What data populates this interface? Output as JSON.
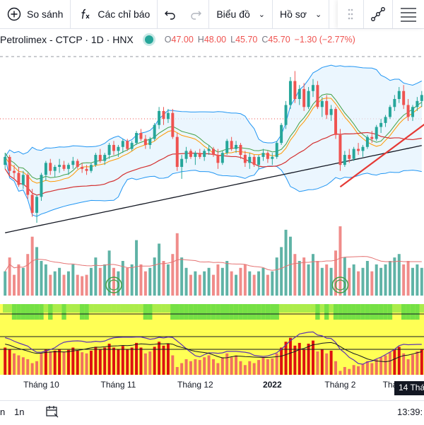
{
  "toolbar": {
    "compare_label": "So sánh",
    "indicators_label": "Các chỉ báo",
    "chart_label": "Biểu đồ",
    "profile_label": "Hồ sơ"
  },
  "legend": {
    "symbol": "Petrolimex - CTCP · 1D · HNX",
    "open_label": "O",
    "open": "47.00",
    "high_label": "H",
    "high": "48.00",
    "low_label": "L",
    "low": "45.70",
    "close_label": "C",
    "close": "45.70",
    "change": "−1.30 (−2.77%)"
  },
  "bottom_bar": {
    "range_left": "n",
    "range_1n": "1n",
    "time": "13:39:"
  },
  "crosshair_date": "14 Thá",
  "colors": {
    "up": "#26a69a",
    "down": "#ef5350",
    "bb": "#2196f3",
    "bb_fill": "#e3f2fd",
    "ma_long": "#131722",
    "trend": "#e53935",
    "vol_up": "#5fb3a6",
    "vol_down": "#f08c8a",
    "ind_yellow": "#ffff55",
    "ind_green": "#66dd44",
    "ind_red": "#dd1111",
    "ind_line": "#5e35b1"
  },
  "chart_data": {
    "type": "candlestick",
    "x_tick_labels": [
      "Tháng 10",
      "Tháng 11",
      "Tháng 12",
      "2022",
      "Tháng 2",
      "Thá"
    ],
    "candles": [
      [
        47.0,
        48.2,
        46.6,
        47.8
      ],
      [
        47.8,
        48.0,
        46.0,
        46.4
      ],
      [
        46.4,
        47.0,
        45.6,
        46.2
      ],
      [
        46.2,
        46.8,
        44.8,
        45.0
      ],
      [
        45.0,
        46.4,
        44.6,
        46.0
      ],
      [
        46.0,
        46.2,
        43.6,
        44.0
      ],
      [
        44.0,
        44.6,
        41.8,
        42.2
      ],
      [
        42.2,
        44.0,
        41.2,
        43.8
      ],
      [
        43.8,
        46.2,
        43.4,
        46.0
      ],
      [
        46.0,
        47.4,
        45.4,
        47.2
      ],
      [
        47.2,
        47.6,
        46.0,
        46.4
      ],
      [
        46.4,
        47.0,
        45.8,
        46.8
      ],
      [
        46.8,
        47.6,
        46.2,
        47.0
      ],
      [
        47.0,
        47.4,
        46.4,
        46.6
      ],
      [
        46.6,
        47.2,
        46.0,
        47.0
      ],
      [
        47.0,
        47.8,
        46.6,
        47.4
      ],
      [
        47.4,
        47.6,
        46.6,
        46.8
      ],
      [
        46.8,
        47.2,
        46.2,
        46.6
      ],
      [
        46.6,
        47.0,
        46.0,
        46.4
      ],
      [
        46.4,
        47.2,
        46.2,
        47.0
      ],
      [
        47.0,
        48.2,
        46.8,
        48.0
      ],
      [
        48.0,
        48.6,
        47.2,
        47.4
      ],
      [
        47.4,
        48.2,
        47.0,
        48.0
      ],
      [
        48.0,
        49.2,
        47.6,
        49.0
      ],
      [
        49.0,
        49.4,
        48.0,
        48.4
      ],
      [
        48.4,
        49.0,
        47.8,
        48.8
      ],
      [
        48.8,
        49.6,
        48.2,
        49.4
      ],
      [
        49.4,
        49.6,
        48.4,
        48.6
      ],
      [
        48.6,
        49.4,
        48.4,
        49.2
      ],
      [
        49.2,
        50.4,
        49.0,
        50.2
      ],
      [
        50.2,
        50.6,
        49.4,
        49.6
      ],
      [
        49.6,
        50.0,
        48.6,
        49.0
      ],
      [
        49.0,
        49.8,
        48.6,
        49.6
      ],
      [
        49.6,
        51.2,
        49.4,
        51.0
      ],
      [
        51.0,
        52.8,
        50.6,
        52.4
      ],
      [
        52.4,
        52.8,
        51.0,
        51.6
      ],
      [
        51.6,
        52.6,
        51.2,
        52.2
      ],
      [
        52.2,
        52.6,
        49.6,
        49.8
      ],
      [
        49.8,
        50.2,
        46.4,
        46.8
      ],
      [
        46.8,
        48.0,
        45.6,
        47.6
      ],
      [
        47.6,
        48.8,
        47.2,
        48.4
      ],
      [
        48.4,
        48.6,
        47.6,
        47.8
      ],
      [
        47.8,
        48.4,
        47.0,
        48.2
      ],
      [
        48.2,
        48.6,
        47.6,
        47.8
      ],
      [
        47.8,
        48.6,
        47.4,
        48.4
      ],
      [
        48.4,
        49.0,
        48.0,
        48.6
      ],
      [
        48.6,
        48.8,
        47.8,
        48.0
      ],
      [
        48.0,
        48.6,
        46.6,
        47.2
      ],
      [
        47.2,
        48.4,
        47.0,
        48.2
      ],
      [
        48.2,
        49.6,
        48.0,
        49.4
      ],
      [
        49.4,
        49.8,
        48.4,
        48.6
      ],
      [
        48.6,
        49.4,
        48.2,
        49.0
      ],
      [
        49.0,
        49.2,
        47.6,
        48.0
      ],
      [
        48.0,
        48.4,
        46.8,
        47.2
      ],
      [
        47.2,
        48.2,
        46.6,
        47.8
      ],
      [
        47.8,
        48.0,
        46.8,
        47.0
      ],
      [
        47.0,
        48.0,
        46.6,
        47.8
      ],
      [
        47.8,
        48.6,
        47.4,
        48.2
      ],
      [
        48.2,
        48.4,
        47.2,
        47.6
      ],
      [
        47.6,
        48.2,
        47.0,
        47.8
      ],
      [
        47.8,
        49.4,
        47.6,
        49.2
      ],
      [
        49.2,
        51.2,
        49.0,
        51.0
      ],
      [
        51.0,
        53.4,
        50.6,
        53.0
      ],
      [
        53.0,
        55.8,
        52.6,
        55.4
      ],
      [
        55.4,
        56.4,
        53.2,
        53.6
      ],
      [
        53.6,
        55.0,
        53.0,
        54.6
      ],
      [
        54.6,
        55.2,
        52.4,
        52.8
      ],
      [
        52.8,
        54.8,
        52.6,
        54.4
      ],
      [
        54.4,
        55.6,
        53.8,
        55.0
      ],
      [
        55.0,
        55.4,
        52.6,
        52.8
      ],
      [
        52.8,
        53.8,
        51.8,
        53.4
      ],
      [
        53.4,
        54.0,
        51.6,
        52.0
      ],
      [
        52.0,
        53.0,
        51.4,
        52.6
      ],
      [
        52.6,
        52.8,
        49.6,
        50.0
      ],
      [
        50.0,
        50.6,
        46.4,
        47.0
      ],
      [
        47.0,
        48.4,
        46.8,
        48.0
      ],
      [
        48.0,
        48.6,
        47.2,
        47.6
      ],
      [
        47.6,
        48.8,
        47.4,
        48.6
      ],
      [
        48.6,
        49.2,
        48.0,
        48.4
      ],
      [
        48.4,
        49.0,
        47.8,
        48.8
      ],
      [
        48.8,
        50.0,
        48.6,
        49.8
      ],
      [
        49.8,
        50.4,
        49.2,
        49.6
      ],
      [
        49.6,
        51.0,
        49.4,
        50.8
      ],
      [
        50.8,
        51.6,
        50.2,
        51.2
      ],
      [
        51.2,
        52.0,
        50.8,
        51.8
      ],
      [
        51.8,
        53.0,
        51.6,
        52.8
      ],
      [
        52.8,
        54.0,
        52.4,
        53.6
      ],
      [
        53.6,
        54.8,
        53.2,
        54.4
      ],
      [
        54.4,
        55.0,
        52.6,
        53.0
      ],
      [
        53.0,
        53.6,
        51.4,
        51.8
      ],
      [
        51.8,
        53.0,
        51.4,
        52.8
      ],
      [
        52.8,
        53.8,
        52.4,
        53.4
      ],
      [
        53.4,
        54.4,
        52.8,
        54.0
      ]
    ],
    "volume_rel": [
      0.35,
      0.55,
      0.3,
      0.45,
      0.4,
      0.6,
      0.85,
      0.7,
      0.5,
      0.45,
      0.3,
      0.35,
      0.4,
      0.3,
      0.35,
      0.45,
      0.3,
      0.28,
      0.3,
      0.4,
      0.55,
      0.4,
      0.45,
      0.65,
      0.4,
      0.35,
      0.5,
      0.4,
      0.45,
      0.8,
      0.45,
      0.35,
      0.4,
      0.55,
      0.75,
      0.5,
      0.45,
      0.6,
      0.9,
      0.55,
      0.4,
      0.3,
      0.35,
      0.3,
      0.35,
      0.4,
      0.3,
      0.45,
      0.4,
      0.5,
      0.35,
      0.3,
      0.4,
      0.45,
      0.35,
      0.3,
      0.35,
      0.4,
      0.3,
      0.35,
      0.55,
      0.7,
      0.95,
      0.85,
      0.6,
      0.5,
      0.55,
      0.45,
      0.6,
      0.5,
      0.4,
      0.45,
      0.4,
      0.65,
      1.0,
      0.55,
      0.4,
      0.45,
      0.35,
      0.4,
      0.5,
      0.35,
      0.45,
      0.4,
      0.45,
      0.5,
      0.55,
      0.6,
      0.45,
      0.5,
      0.4,
      0.45,
      0.4
    ],
    "indicator_bars": [
      0.7,
      0.65,
      0.55,
      0.5,
      0.45,
      0.4,
      0.3,
      0.35,
      0.55,
      0.65,
      0.6,
      0.62,
      0.66,
      0.6,
      0.64,
      0.7,
      0.62,
      0.58,
      0.55,
      0.62,
      0.72,
      0.65,
      0.7,
      0.8,
      0.7,
      0.66,
      0.74,
      0.65,
      0.7,
      0.82,
      0.7,
      0.55,
      0.6,
      0.72,
      0.85,
      0.75,
      0.8,
      0.5,
      0.2,
      0.3,
      0.4,
      0.35,
      0.4,
      0.38,
      0.45,
      0.5,
      0.4,
      0.3,
      0.45,
      0.55,
      0.45,
      0.5,
      0.35,
      0.25,
      0.35,
      0.3,
      0.38,
      0.45,
      0.4,
      0.42,
      0.55,
      0.7,
      0.85,
      0.95,
      0.75,
      0.82,
      0.65,
      0.8,
      0.88,
      0.6,
      0.66,
      0.55,
      0.62,
      0.35,
      0.1,
      0.2,
      0.15,
      0.25,
      0.22,
      0.28,
      0.35,
      0.3,
      0.4,
      0.45,
      0.5,
      0.58,
      0.65,
      0.72,
      0.55,
      0.4,
      0.52,
      0.6,
      0.65
    ],
    "bb_period": 20,
    "ma_short": 10,
    "ma_mid": 20,
    "ma_long_period": 50,
    "trend_line": [
      [
        74,
        44.8
      ],
      [
        93,
        51.2
      ]
    ],
    "y_range": [
      40,
      57
    ]
  }
}
